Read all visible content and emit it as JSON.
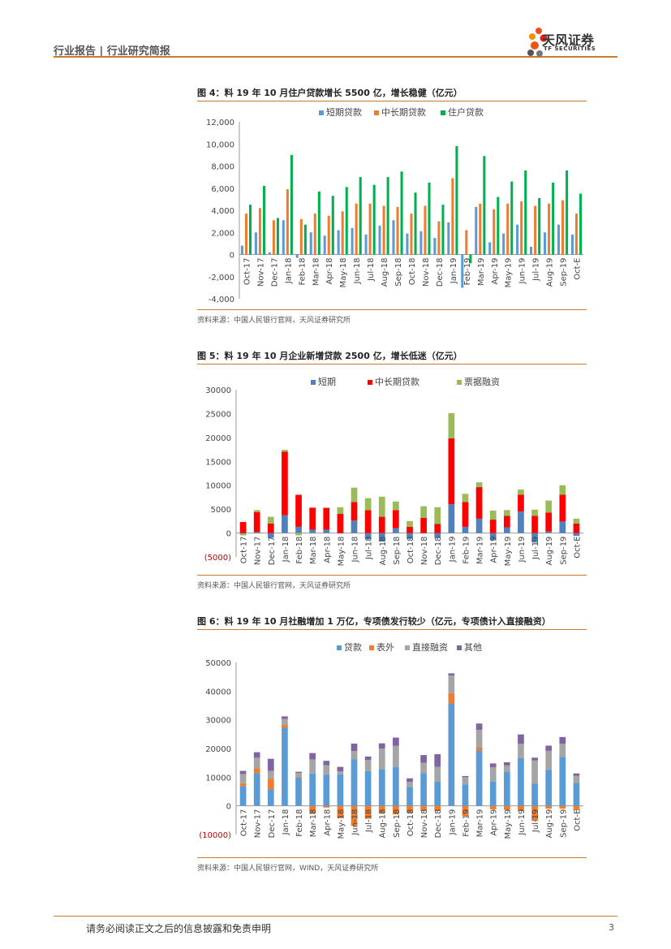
{
  "header": {
    "title": "行业报告 | 行业研究简报"
  },
  "logo": {
    "cn": "天风证券",
    "en": "TF SECURITIES"
  },
  "footer": {
    "disclaimer": "请务必阅读正文之后的信息披露和免责申明",
    "page": "3"
  },
  "figures": [
    {
      "title": "图 4：料 19 年 10 月住户贷款增长 5500 亿，增长稳健（亿元）",
      "source": "资料来源：中国人民银行官网，天风证券研究所"
    },
    {
      "title": "图 5：料 19 年 10 月企业新增贷款 2500 亿，增长低迷（亿元）",
      "source": "资料来源：中国人民银行官网，天风证券研究所"
    },
    {
      "title": "图 6：料 19 年 10 月社融增加 1 万亿，专项债发行较少（亿元，专项债计入直接融资）",
      "source": "资料来源：中国人民银行官网，WIND，天风证券研究所"
    }
  ],
  "chart_data": [
    {
      "type": "bar",
      "categories": [
        "Oct-17",
        "Nov-17",
        "Dec-17",
        "Jan-18",
        "Feb-18",
        "Mar-18",
        "Apr-18",
        "May-18",
        "Jun-18",
        "Jul-18",
        "Aug-18",
        "Sep-18",
        "Oct-18",
        "Nov-18",
        "Dec-18",
        "Jan-19",
        "Feb-19",
        "Mar-19",
        "Apr-19",
        "May-19",
        "Jun-19",
        "Jul-19",
        "Aug-19",
        "Sep-19",
        "Oct-E"
      ],
      "tick_labels": [
        "12,000",
        "10,000",
        "8,000",
        "6,000",
        "4,000",
        "2,000",
        "0",
        "-2,000",
        "-4,000"
      ],
      "ylim": [
        -4000,
        12000
      ],
      "legend_position": "top",
      "series": [
        {
          "name": "短期贷款",
          "color": "#5b9bd5",
          "values": [
            800,
            2000,
            200,
            3100,
            -300,
            2000,
            1700,
            2200,
            2400,
            1800,
            2600,
            3100,
            1900,
            2100,
            1500,
            2900,
            -3000,
            4300,
            1100,
            1900,
            2700,
            700,
            2000,
            2700,
            1800
          ]
        },
        {
          "name": "中长期贷款",
          "color": "#ed7d31",
          "values": [
            3700,
            4200,
            3100,
            5900,
            3200,
            3700,
            3500,
            3900,
            4600,
            4600,
            4400,
            4300,
            3700,
            4400,
            3000,
            6900,
            2200,
            4600,
            4100,
            4600,
            4800,
            4400,
            4600,
            4900,
            3700
          ]
        },
        {
          "name": "住户贷款",
          "color": "#00b050",
          "values": [
            4500,
            6200,
            3300,
            9000,
            2700,
            5700,
            5300,
            6100,
            7000,
            6300,
            7000,
            7500,
            5600,
            6500,
            4500,
            9800,
            -800,
            8900,
            5200,
            6600,
            7600,
            5100,
            6500,
            7600,
            5500
          ]
        }
      ]
    },
    {
      "type": "bar",
      "stacked": true,
      "categories": [
        "Oct-17",
        "Nov-17",
        "Dec-17",
        "Jan-18",
        "Feb-18",
        "Mar-18",
        "Apr-18",
        "May-18",
        "Jun-18",
        "Jul-18",
        "Aug-18",
        "Sep-18",
        "Oct-18",
        "Nov-18",
        "Dec-18",
        "Jan-19",
        "Feb-19",
        "Mar-19",
        "Apr-19",
        "May-19",
        "Jun-19",
        "Jul-19",
        "Aug-19",
        "Sep-19",
        "Oct-E"
      ],
      "tick_labels": [
        "30000",
        "25000",
        "20000",
        "15000",
        "10000",
        "5000",
        "0",
        "(5000)"
      ],
      "ylim": [
        -5000,
        30000
      ],
      "legend_position": "top",
      "series": [
        {
          "name": "短期",
          "color": "#4f81bd",
          "values": [
            -200,
            200,
            -1000,
            3700,
            1300,
            700,
            700,
            -100,
            2600,
            -1300,
            -1800,
            1000,
            -1200,
            0,
            -1000,
            6000,
            1300,
            3000,
            -1500,
            1200,
            4500,
            -2000,
            300,
            2400,
            -600
          ]
        },
        {
          "name": "中长期贷款",
          "color": "#ff0000",
          "values": [
            2300,
            4200,
            2000,
            13300,
            6700,
            4600,
            4600,
            4000,
            3900,
            4800,
            3400,
            3800,
            1300,
            3200,
            1900,
            13800,
            5200,
            6600,
            2800,
            2400,
            3500,
            3600,
            4000,
            5600,
            2000
          ]
        },
        {
          "name": "票据融资",
          "color": "#9bbb59",
          "values": [
            -300,
            400,
            1400,
            400,
            -500,
            -100,
            0,
            1400,
            3000,
            2500,
            4200,
            1800,
            1200,
            2400,
            3500,
            5300,
            1700,
            1000,
            1900,
            1200,
            1100,
            1300,
            2500,
            2000,
            1000
          ]
        }
      ]
    },
    {
      "type": "bar",
      "stacked": true,
      "categories": [
        "Oct-17",
        "Nov-17",
        "Dec-17",
        "Jan-18",
        "Feb-18",
        "Mar-18",
        "Apr-18",
        "May-18",
        "Jun-18",
        "Jul-18",
        "Aug-18",
        "Sep-18",
        "Oct-18",
        "Nov-18",
        "Dec-18",
        "Jan-19",
        "Feb-19",
        "Mar-19",
        "Apr-19",
        "May-19",
        "Jun-19",
        "Jul-19",
        "Aug-19",
        "Sep-19",
        "Oct-E"
      ],
      "tick_labels": [
        "50000",
        "40000",
        "30000",
        "20000",
        "10000",
        "0",
        "(10000)"
      ],
      "ylim": [
        -10000,
        50000
      ],
      "legend_position": "top",
      "series": [
        {
          "name": "贷款",
          "color": "#5b9bd5",
          "values": [
            6900,
            11400,
            5700,
            27200,
            10000,
            11300,
            10900,
            11000,
            16300,
            12100,
            12800,
            13500,
            6600,
            11400,
            8500,
            35700,
            7500,
            19300,
            8500,
            11900,
            16700,
            7800,
            12600,
            17000,
            8000
          ]
        },
        {
          "name": "表外",
          "color": "#ed7d31",
          "values": [
            1000,
            1700,
            3700,
            1100,
            300,
            -2800,
            -600,
            -4300,
            -7000,
            -4500,
            -2700,
            -3000,
            -2500,
            -1800,
            -1800,
            3600,
            -3500,
            1200,
            -1200,
            -1400,
            -1800,
            -5300,
            -1000,
            -1000,
            -1500
          ]
        },
        {
          "name": "直接融资",
          "color": "#a5a5a5",
          "values": [
            3200,
            3700,
            2800,
            2000,
            1200,
            4900,
            3300,
            1000,
            2800,
            3900,
            7200,
            7400,
            1800,
            3600,
            5100,
            6100,
            2500,
            6000,
            5000,
            2200,
            5000,
            8000,
            6600,
            4700,
            2500
          ]
        },
        {
          "name": "其他",
          "color": "#8064a2",
          "values": [
            1100,
            1900,
            4200,
            900,
            400,
            2200,
            1500,
            1600,
            2600,
            1200,
            1800,
            2900,
            1200,
            2700,
            4400,
            800,
            400,
            2200,
            1300,
            1100,
            3200,
            1000,
            1800,
            2300,
            800
          ]
        }
      ]
    }
  ]
}
